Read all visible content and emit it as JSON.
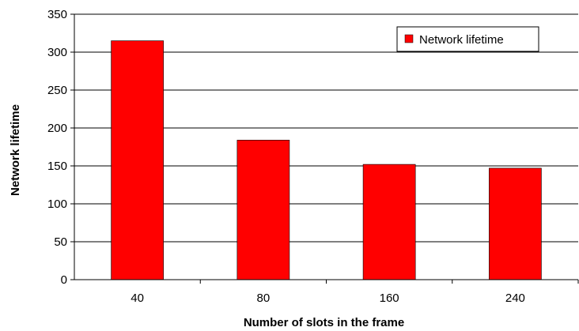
{
  "chart_data": {
    "type": "bar",
    "title": "",
    "xlabel": "Number of slots in the frame",
    "ylabel": "Network lifetime",
    "categories": [
      "40",
      "80",
      "160",
      "240"
    ],
    "series": [
      {
        "name": "Network lifetime",
        "values": [
          315,
          184,
          152,
          147
        ],
        "color": "#ff0000"
      }
    ],
    "ylim": [
      0,
      350
    ],
    "yticks": [
      0,
      50,
      100,
      150,
      200,
      250,
      300,
      350
    ],
    "grid": true,
    "legend": "top-right"
  }
}
